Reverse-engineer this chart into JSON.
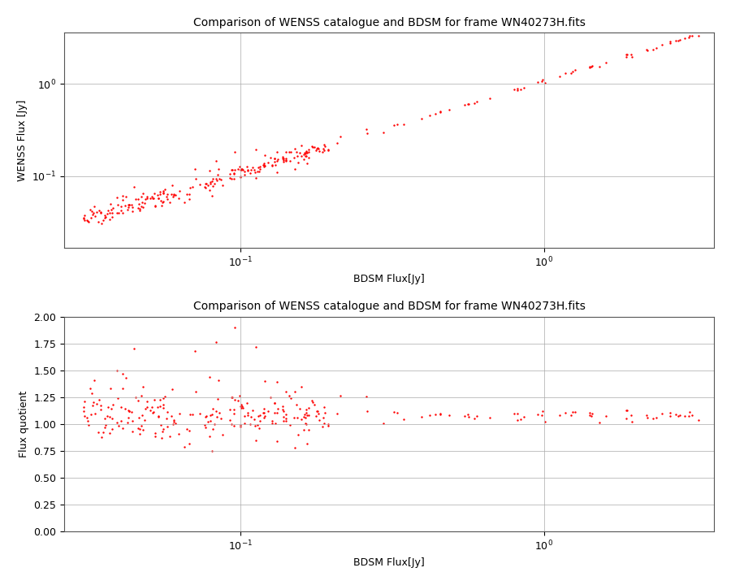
{
  "title": "Comparison of WENSS catalogue and BDSM for frame WN40273H.fits",
  "xlabel_top": "BDSM Flux[Jy]",
  "ylabel_top": "WENSS Flux [Jy]",
  "xlabel_bottom": "BDSM Flux[Jy]",
  "ylabel_bottom": "Flux quotient",
  "dot_color": "#ff0000",
  "dot_size": 3,
  "background_color": "#ffffff",
  "title_fontsize": 10,
  "label_fontsize": 9,
  "tick_fontsize": 9,
  "seed": 42,
  "yticks_bottom": [
    0.0,
    0.25,
    0.5,
    0.75,
    1.0,
    1.25,
    1.5,
    1.75,
    2.0
  ]
}
